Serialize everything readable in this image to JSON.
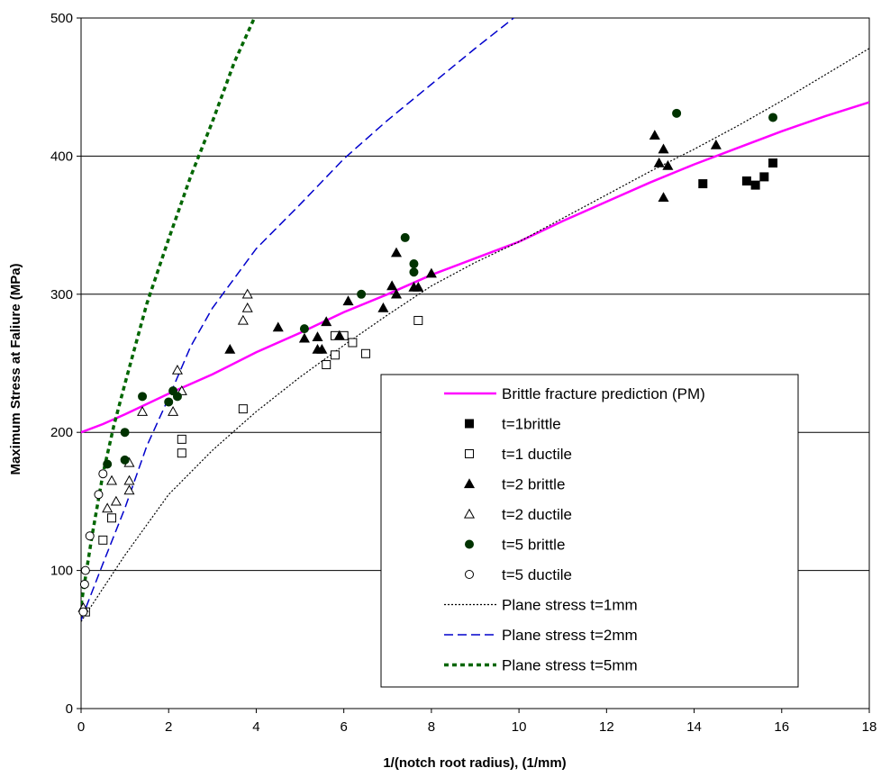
{
  "chart_data": {
    "type": "scatter",
    "title": "",
    "xlabel": "1/(notch root radius), (1/mm)",
    "ylabel": "Maximum Stress at Faliure (MPa)",
    "xlim": [
      0,
      18
    ],
    "ylim": [
      0,
      500
    ],
    "xticks": [
      "0",
      "2",
      "4",
      "6",
      "8",
      "10",
      "12",
      "14",
      "16",
      "18"
    ],
    "yticks": [
      "0",
      "100",
      "200",
      "300",
      "400",
      "500"
    ],
    "grid": "horizontal major",
    "legend_position": "lower-right",
    "series": [
      {
        "name": "Brittle fracture prediction (PM)",
        "kind": "line",
        "color": "#ff00ff",
        "dash": "solid",
        "width": 2.5,
        "x": [
          0,
          0.5,
          1,
          2,
          3,
          4,
          5,
          6,
          7,
          8,
          9,
          10,
          11,
          12,
          13,
          14,
          15,
          16,
          17,
          18
        ],
        "y": [
          200,
          206,
          213,
          228,
          242,
          258,
          272,
          287,
          300,
          314,
          326,
          338,
          353,
          367,
          381,
          394,
          406,
          418,
          429,
          439
        ]
      },
      {
        "name": "t=1brittle",
        "kind": "scatter",
        "marker": "square-filled",
        "color": "#000000",
        "x": [
          14.2,
          15.2,
          15.4,
          15.6,
          15.8
        ],
        "y": [
          380,
          382,
          379,
          385,
          395
        ]
      },
      {
        "name": "t=1 ductile",
        "kind": "scatter",
        "marker": "square-open",
        "color": "#000000",
        "x": [
          0.1,
          0.5,
          0.7,
          2.3,
          2.3,
          3.7,
          5.6,
          5.8,
          5.8,
          6,
          6.2,
          6.5,
          7.7
        ],
        "y": [
          70,
          122,
          138,
          195,
          185,
          217,
          249,
          256,
          270,
          270,
          265,
          257,
          281
        ]
      },
      {
        "name": "t=2 brittle",
        "kind": "scatter",
        "marker": "triangle-filled",
        "color": "#000000",
        "x": [
          3.4,
          4.5,
          5.1,
          5.4,
          5.4,
          5.5,
          5.6,
          5.9,
          6.1,
          6.9,
          7.1,
          7.2,
          7.2,
          7.6,
          7.7,
          8,
          13.1,
          13.2,
          13.3,
          13.4,
          13.3,
          14.5
        ],
        "y": [
          260,
          276,
          268,
          269,
          260,
          260,
          280,
          270,
          295,
          290,
          306,
          330,
          300,
          305,
          305,
          315,
          415,
          395,
          405,
          393,
          370,
          408
        ]
      },
      {
        "name": "t=2 ductile",
        "kind": "scatter",
        "marker": "triangle-open",
        "color": "#000000",
        "x": [
          0.05,
          0.6,
          0.7,
          0.8,
          1.1,
          1.1,
          1.1,
          1.4,
          2.1,
          2.2,
          2.3,
          3.7,
          3.8,
          3.8
        ],
        "y": [
          73,
          145,
          165,
          150,
          165,
          178,
          158,
          215,
          215,
          245,
          230,
          281,
          290,
          300
        ]
      },
      {
        "name": "t=5 brittle",
        "kind": "scatter",
        "marker": "circle-filled",
        "color": "#003300",
        "x": [
          0.6,
          1,
          1,
          1.4,
          2,
          2.1,
          2.2,
          5.1,
          6.4,
          7.4,
          7.6,
          7.6,
          13.6,
          15.8
        ],
        "y": [
          177,
          200,
          180,
          226,
          222,
          230,
          226,
          275,
          300,
          341,
          322,
          316,
          431,
          428
        ]
      },
      {
        "name": "t=5 ductile",
        "kind": "scatter",
        "marker": "circle-open",
        "color": "#000000",
        "x": [
          0.05,
          0.08,
          0.1,
          0.2,
          0.4,
          0.5
        ],
        "y": [
          70,
          90,
          100,
          125,
          155,
          170
        ]
      },
      {
        "name": "Plane stress t=1mm",
        "kind": "line",
        "color": "#000000",
        "dash": "dotted",
        "width": 1.2,
        "x": [
          0,
          0.5,
          1,
          2,
          3,
          4,
          5,
          6,
          7,
          8,
          9,
          10,
          11,
          12,
          13,
          14,
          15,
          16,
          17,
          18
        ],
        "y": [
          63,
          87,
          111,
          155,
          187,
          215,
          240,
          263,
          285,
          306,
          323,
          338,
          355,
          372,
          389,
          405,
          422,
          440,
          459,
          478
        ]
      },
      {
        "name": "Plane stress t=2mm",
        "kind": "line",
        "color": "#0000cc",
        "dash": "dashed",
        "width": 1.5,
        "x": [
          0,
          0.5,
          1,
          1.5,
          2,
          2.5,
          3,
          4,
          5,
          6,
          7,
          8,
          9,
          10
        ],
        "y": [
          64,
          105,
          145,
          190,
          225,
          262,
          290,
          333,
          365,
          398,
          426,
          452,
          478,
          503
        ]
      },
      {
        "name": "Plane stress t=5mm",
        "kind": "line",
        "color": "#006600",
        "dash": "heavy-dashed",
        "width": 3.5,
        "x": [
          0,
          0.25,
          0.5,
          0.75,
          1,
          1.5,
          2,
          2.5,
          3,
          3.5,
          4
        ],
        "y": [
          75,
          125,
          170,
          205,
          235,
          293,
          340,
          385,
          425,
          468,
          503
        ]
      }
    ]
  }
}
